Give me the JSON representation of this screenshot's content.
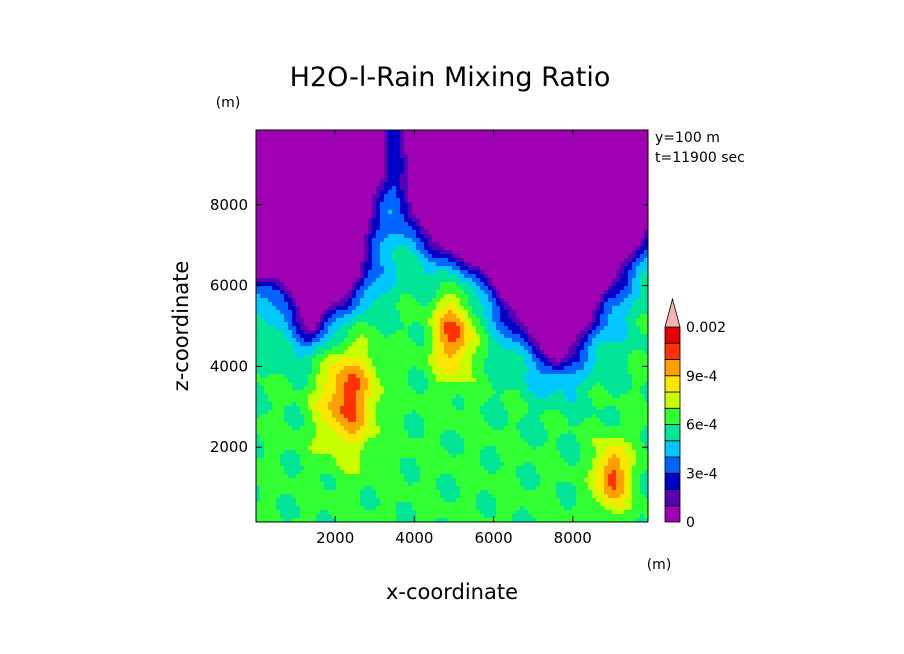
{
  "chart_data": {
    "type": "heatmap",
    "title": "H2O-l-Rain Mixing Ratio",
    "xlabel": "x-coordinate",
    "ylabel": "z-coordinate",
    "x_unit": "(m)",
    "y_unit": "(m)",
    "annotations": [
      "y=100 m",
      "t=11900 sec"
    ],
    "xlim": [
      0,
      9900
    ],
    "ylim": [
      150,
      9850
    ],
    "x_ticks": [
      2000,
      4000,
      6000,
      8000
    ],
    "x_tick_labels": [
      "2000",
      "4000",
      "6000",
      "8000"
    ],
    "y_ticks": [
      2000,
      4000,
      6000,
      8000
    ],
    "y_tick_labels": [
      "2000",
      "4000",
      "6000",
      "8000"
    ],
    "grid": false,
    "colorbar": {
      "placement": "right",
      "levels": [
        0,
        0.0001,
        0.0002,
        0.0003,
        0.0004,
        0.0005,
        0.0006,
        0.0007,
        0.0008,
        0.0009,
        0.001,
        0.0015,
        0.002
      ],
      "colors": [
        "#a000b4",
        "#5a00b4",
        "#0000c8",
        "#0064ff",
        "#00c8ff",
        "#00e696",
        "#32ff32",
        "#c8ff00",
        "#ffe600",
        "#ffa000",
        "#ff3200",
        "#e60000",
        "#f08080",
        "#f5b4b4"
      ],
      "labels": [
        {
          "value": 0,
          "text": "0"
        },
        {
          "value": 0.0003,
          "text": "3e-4"
        },
        {
          "value": 0.0006,
          "text": "6e-4"
        },
        {
          "value": 0.0009,
          "text": "9e-4"
        },
        {
          "value": 0.002,
          "text": "0.002"
        }
      ]
    },
    "features": [
      {
        "kind": "dry-region",
        "value": 0,
        "polygon": [
          [
            0,
            9850
          ],
          [
            3100,
            9850
          ],
          [
            3200,
            9000
          ],
          [
            2800,
            7800
          ],
          [
            2500,
            6200
          ],
          [
            1800,
            5500
          ],
          [
            1400,
            5000
          ],
          [
            1100,
            5600
          ],
          [
            600,
            6300
          ],
          [
            0,
            6300
          ]
        ]
      },
      {
        "kind": "dry-region",
        "value": 0,
        "polygon": [
          [
            3900,
            9850
          ],
          [
            9900,
            9850
          ],
          [
            9900,
            7500
          ],
          [
            9300,
            6800
          ],
          [
            8200,
            5000
          ],
          [
            7600,
            4200
          ],
          [
            7200,
            4700
          ],
          [
            6700,
            5200
          ],
          [
            5800,
            6500
          ],
          [
            4800,
            7000
          ],
          [
            4000,
            7800
          ],
          [
            3900,
            8800
          ]
        ]
      },
      {
        "kind": "rain-core",
        "value": 0.0008,
        "center": [
          2300,
          3300
        ],
        "radii": [
          700,
          1300
        ]
      },
      {
        "kind": "rain-core",
        "value": 0.0008,
        "center": [
          5000,
          4800
        ],
        "radii": [
          500,
          1000
        ]
      },
      {
        "kind": "rain-core",
        "value": 0.0008,
        "center": [
          9000,
          1300
        ],
        "radii": [
          400,
          800
        ]
      }
    ]
  }
}
